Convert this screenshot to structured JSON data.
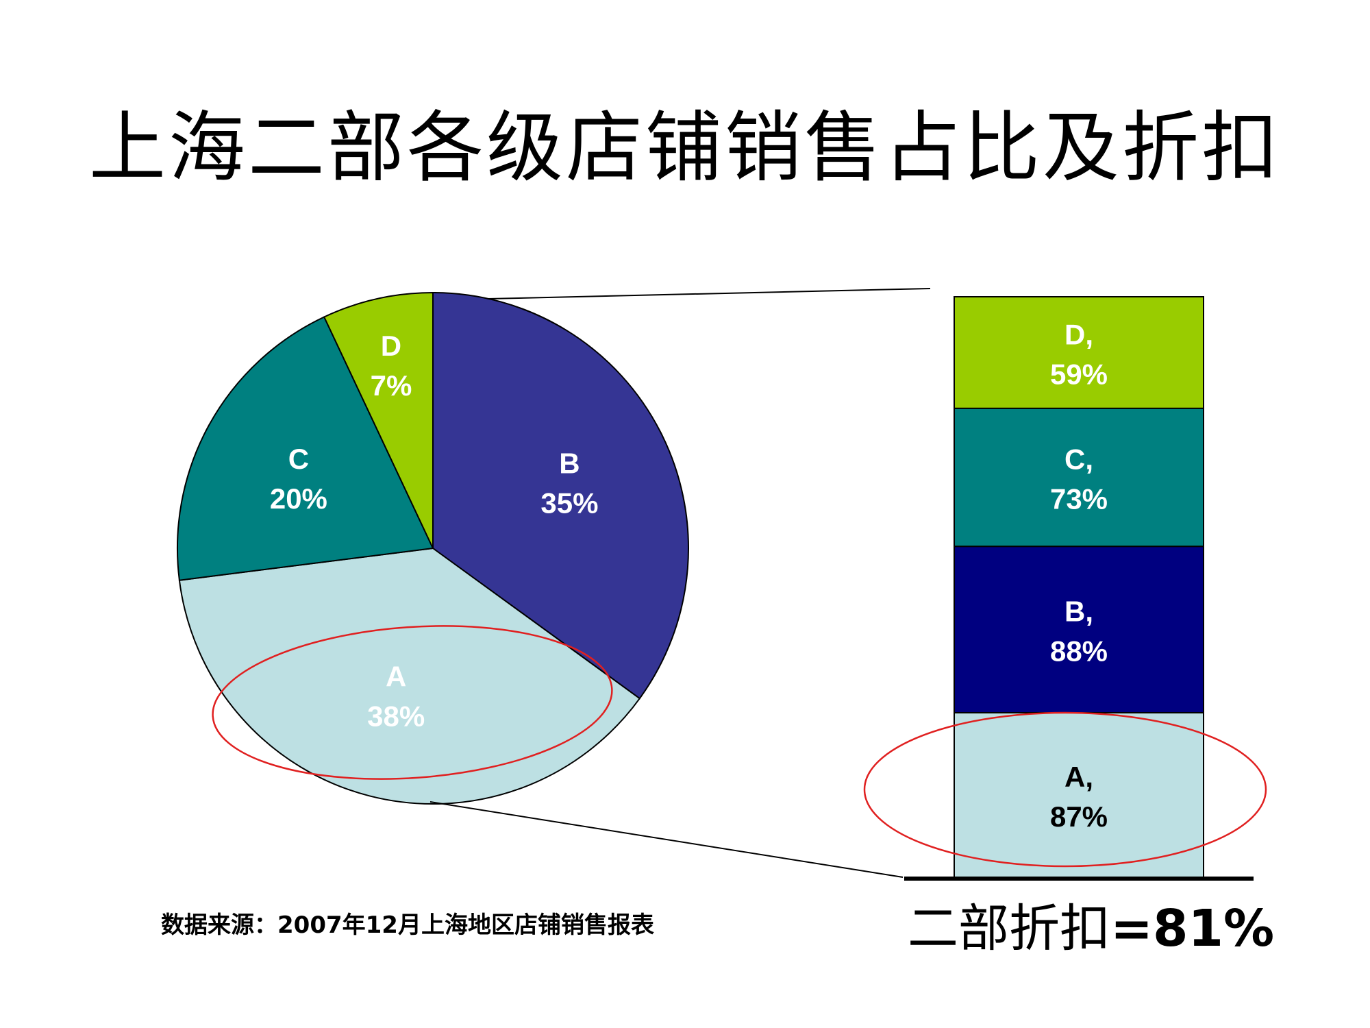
{
  "title": "上海二部各级店铺销售占比及折扣",
  "source_note": "数据来源：2007年12月上海地区店铺销售报表",
  "summary": {
    "label": "二部折扣",
    "value": "=81%"
  },
  "colors": {
    "A": "#bde0e3",
    "B_pie": "#353594",
    "B_bar": "#000080",
    "C": "#008080",
    "D": "#99cc00",
    "highlight": "#e02020"
  },
  "chart_data": [
    {
      "type": "pie",
      "title": "",
      "categories": [
        "B",
        "A",
        "C",
        "D"
      ],
      "values": [
        35,
        38,
        20,
        7
      ],
      "labels": [
        {
          "name": "B",
          "value": "35%"
        },
        {
          "name": "A",
          "value": "38%"
        },
        {
          "name": "C",
          "value": "20%"
        },
        {
          "name": "D",
          "value": "7%"
        }
      ],
      "highlight": "A"
    },
    {
      "type": "bar",
      "stacked": true,
      "categories": [
        "A",
        "B",
        "C",
        "D"
      ],
      "values": [
        87,
        88,
        73,
        59
      ],
      "labels": [
        {
          "name": "A,",
          "value": "87%"
        },
        {
          "name": "B,",
          "value": "88%"
        },
        {
          "name": "C,",
          "value": "73%"
        },
        {
          "name": "D,",
          "value": "59%"
        }
      ],
      "highlight": "A"
    }
  ]
}
